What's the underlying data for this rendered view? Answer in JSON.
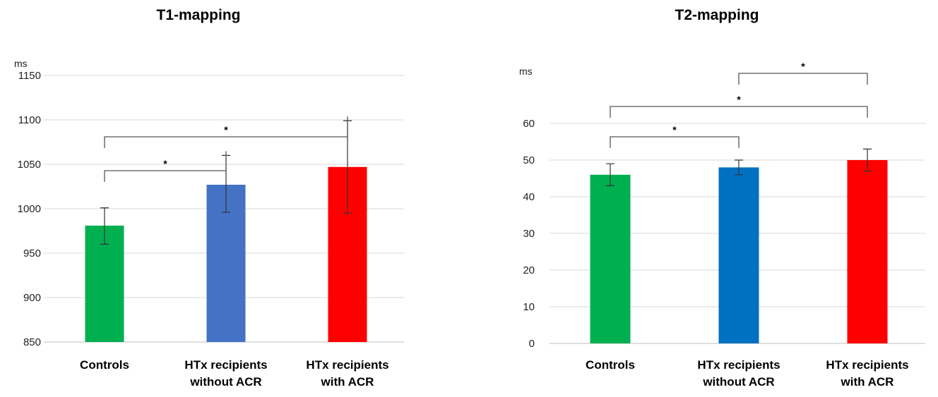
{
  "chart_data": [
    {
      "type": "bar",
      "title": "T1-mapping",
      "ylabel": "ms",
      "ylim": [
        850,
        1150
      ],
      "yticks": [
        850,
        900,
        950,
        1000,
        1050,
        1100,
        1150
      ],
      "categories": [
        [
          "Controls"
        ],
        [
          "HTx recipients",
          "without ACR"
        ],
        [
          "HTx recipients",
          "with ACR"
        ]
      ],
      "values": [
        981,
        1027,
        1047
      ],
      "error_low": [
        960,
        996,
        995
      ],
      "error_high": [
        1001,
        1060,
        1099
      ],
      "colors": [
        "#00b050",
        "#4472c4",
        "#ff0000"
      ],
      "significance": [
        {
          "from": 0,
          "to": 1,
          "label": "*"
        },
        {
          "from": 0,
          "to": 2,
          "label": "*"
        }
      ]
    },
    {
      "type": "bar",
      "title": "T2-mapping",
      "ylabel": "ms",
      "ylim": [
        0,
        60
      ],
      "yticks": [
        0,
        10,
        20,
        30,
        40,
        50,
        60
      ],
      "categories": [
        [
          "Controls"
        ],
        [
          "HTx recipients",
          "without ACR"
        ],
        [
          "HTx recipients",
          "with ACR"
        ]
      ],
      "values": [
        46,
        48,
        50
      ],
      "error_low": [
        43,
        46,
        47
      ],
      "error_high": [
        49,
        50,
        53
      ],
      "colors": [
        "#00b050",
        "#0070c0",
        "#ff0000"
      ],
      "significance": [
        {
          "from": 0,
          "to": 1,
          "label": "*"
        },
        {
          "from": 0,
          "to": 2,
          "label": "*"
        },
        {
          "from": 1,
          "to": 2,
          "label": "*"
        }
      ]
    }
  ]
}
